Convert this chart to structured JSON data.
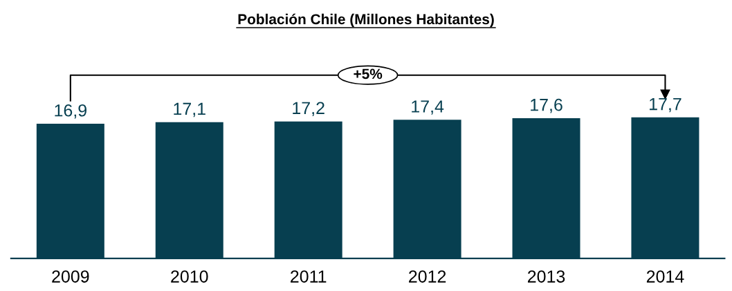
{
  "chart_data": {
    "type": "bar",
    "title": "Población Chile (Millones Habitantes)",
    "categories": [
      "2009",
      "2010",
      "2011",
      "2012",
      "2013",
      "2014"
    ],
    "values": [
      16.9,
      17.1,
      17.2,
      17.4,
      17.6,
      17.7
    ],
    "value_labels": [
      "16,9",
      "17,1",
      "17,2",
      "17,4",
      "17,6",
      "17,7"
    ],
    "color": "#073f50",
    "tick_labels": "x",
    "grid": false,
    "legend": false,
    "annotations": [
      "+5%"
    ]
  }
}
